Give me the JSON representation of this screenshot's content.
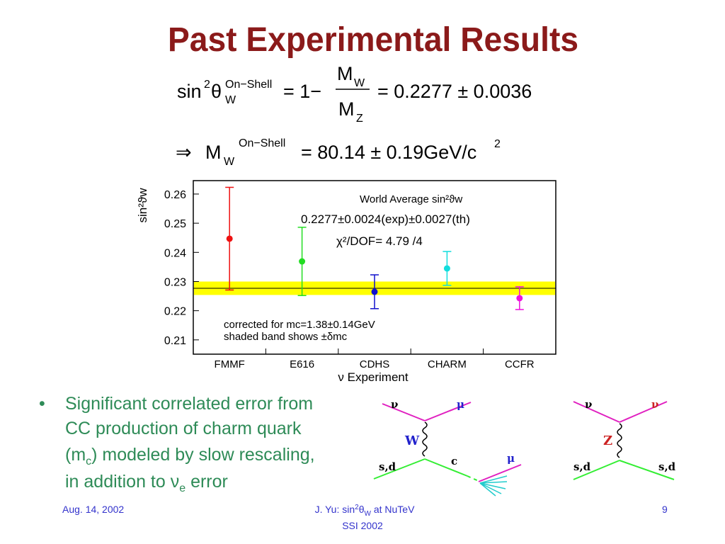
{
  "title": "Past Experimental Results",
  "equation_1": {
    "sin": "sin",
    "power": "2",
    "theta": "θ",
    "subscript": "W",
    "superscript": "On−Shell",
    "middle": "= 1−",
    "numerator": "M",
    "numerator_subscript": "W",
    "denominator": "M",
    "denominator_subscript": "Z",
    "result": "= 0.2277 ± 0.0036"
  },
  "equation_2": {
    "implies": "⇒",
    "symbol": "M",
    "subscript": "W",
    "superscript": "On−Shell",
    "result": "= 80.14 ± 0.19GeV/c",
    "power": "2"
  },
  "chart_data": {
    "type": "errorbar",
    "y_label": "sin²ϑw",
    "x_label": "ν Experiment",
    "categories": [
      "FMMF",
      "E616",
      "CDHS",
      "CHARM",
      "CCFR"
    ],
    "values": [
      0.2447,
      0.2369,
      0.2265,
      0.2345,
      0.2243
    ],
    "errors": [
      0.0176,
      0.0117,
      0.0058,
      0.0058,
      0.0039
    ],
    "colors": [
      "#ee1111",
      "#22dd22",
      "#1111cc",
      "#11dddd",
      "#ee11dd"
    ],
    "band": {
      "value": 0.2277,
      "halfwidth": 0.0023,
      "color": "#ffff00"
    },
    "ylim": [
      0.2051,
      0.2646
    ],
    "yticks": [
      0.21,
      0.22,
      0.23,
      0.24,
      0.25,
      0.26
    ],
    "annotations": [
      "World Average sin²ϑw",
      "0.2277±0.0024(exp)±0.0027(th)",
      "χ²/DOF= 4.79 /4",
      "corrected for mc=1.38±0.14GeV",
      "shaded band shows ±δmc"
    ]
  },
  "bullet": {
    "marker": "•",
    "line_1": "Significant correlated error from",
    "line_2": "CC production of charm quark",
    "line_3": [
      "(m",
      "c",
      ") modeled by slow rescaling,"
    ],
    "line_4": [
      "in addition to ",
      "ν",
      "e",
      " error"
    ]
  },
  "diagram_w": {
    "top_left": "ν",
    "top_right": "μ",
    "boson": "W",
    "bottom_left": "s,d",
    "bottom_right": "c",
    "decay": "μ"
  },
  "diagram_z": {
    "top_left": "ν",
    "top_right": "ν",
    "boson": "Z",
    "bottom_left": "s,d",
    "bottom_right": "s,d"
  },
  "footer": {
    "date": "Aug. 14, 2002",
    "center_line_1": [
      "J. Yu: sin",
      "2",
      "θ",
      "W",
      " at NuTeV"
    ],
    "center_line_2": "SSI 2002",
    "page": "9"
  }
}
